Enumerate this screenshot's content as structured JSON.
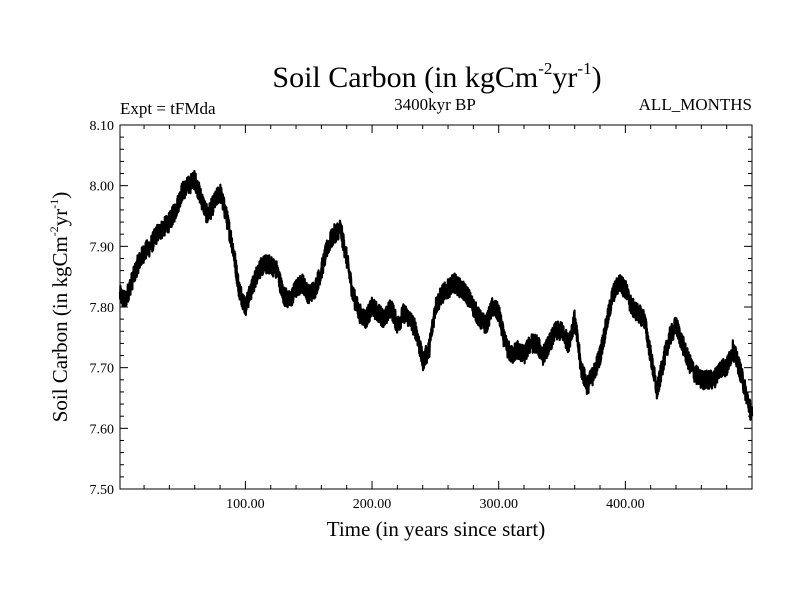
{
  "chart_data": {
    "type": "line",
    "title": {
      "main": "Soil Carbon (in kgCm",
      "sup1": "-2",
      "mid": "yr",
      "sup2": "-1",
      "end": ")"
    },
    "subtitle": "3400kyr BP",
    "left_annotation": "Expt = tFMda",
    "right_annotation": "ALL_MONTHS",
    "xlabel": "Time (in years since start)",
    "ylabel": {
      "main": "Soil Carbon (in kgCm",
      "sup1": "-2",
      "mid": "yr",
      "sup2": "-1",
      "end": ")"
    },
    "xlim": [
      1,
      500
    ],
    "ylim": [
      7.5,
      8.1
    ],
    "x_ticks": [
      100,
      200,
      300,
      400
    ],
    "x_tick_labels": [
      "100.00",
      "200.00",
      "300.00",
      "400.00"
    ],
    "y_ticks": [
      7.5,
      7.6,
      7.7,
      7.8,
      7.9,
      8.0,
      8.1
    ],
    "y_tick_labels": [
      "7.50",
      "7.60",
      "7.70",
      "7.80",
      "7.90",
      "8.00",
      "8.10"
    ],
    "grid": false,
    "series": [
      {
        "name": "Soil Carbon",
        "color": "#000000",
        "x": [
          1,
          5,
          10,
          15,
          20,
          25,
          30,
          35,
          40,
          45,
          50,
          55,
          60,
          65,
          70,
          75,
          80,
          85,
          90,
          95,
          100,
          105,
          110,
          115,
          120,
          125,
          130,
          135,
          140,
          145,
          150,
          155,
          160,
          165,
          170,
          175,
          180,
          185,
          190,
          195,
          200,
          205,
          210,
          215,
          220,
          225,
          230,
          235,
          240,
          245,
          250,
          255,
          260,
          265,
          270,
          275,
          280,
          285,
          290,
          295,
          300,
          305,
          310,
          315,
          320,
          325,
          330,
          335,
          340,
          345,
          350,
          355,
          360,
          365,
          370,
          375,
          380,
          385,
          390,
          395,
          400,
          405,
          410,
          415,
          420,
          425,
          430,
          435,
          440,
          445,
          450,
          455,
          460,
          465,
          470,
          475,
          480,
          485,
          490,
          495,
          500
        ],
        "values": [
          7.82,
          7.81,
          7.84,
          7.87,
          7.89,
          7.9,
          7.92,
          7.93,
          7.94,
          7.96,
          7.99,
          8.0,
          8.01,
          7.98,
          7.95,
          7.97,
          7.99,
          7.95,
          7.9,
          7.83,
          7.8,
          7.83,
          7.86,
          7.87,
          7.87,
          7.86,
          7.82,
          7.81,
          7.83,
          7.84,
          7.82,
          7.83,
          7.86,
          7.9,
          7.92,
          7.93,
          7.88,
          7.82,
          7.79,
          7.78,
          7.8,
          7.79,
          7.78,
          7.8,
          7.77,
          7.79,
          7.78,
          7.76,
          7.71,
          7.73,
          7.8,
          7.82,
          7.83,
          7.84,
          7.83,
          7.82,
          7.8,
          7.78,
          7.77,
          7.8,
          7.79,
          7.74,
          7.72,
          7.73,
          7.72,
          7.74,
          7.74,
          7.72,
          7.74,
          7.76,
          7.76,
          7.74,
          7.78,
          7.7,
          7.67,
          7.69,
          7.72,
          7.77,
          7.82,
          7.84,
          7.83,
          7.8,
          7.79,
          7.78,
          7.72,
          7.66,
          7.71,
          7.75,
          7.77,
          7.74,
          7.71,
          7.69,
          7.68,
          7.68,
          7.68,
          7.7,
          7.7,
          7.73,
          7.7,
          7.66,
          7.62
        ]
      }
    ]
  }
}
